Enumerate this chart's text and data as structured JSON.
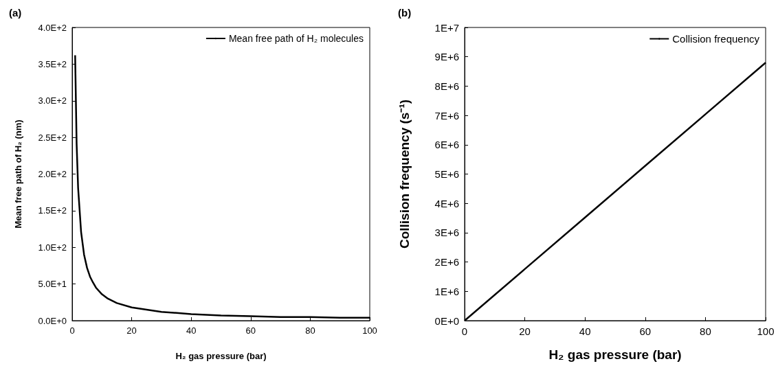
{
  "chart_data": [
    {
      "type": "line",
      "title": "(a)",
      "xlabel": "H₂ gas pressure (bar)",
      "ylabel": "Mean free path of H₂ (nm)",
      "legend": "top right",
      "grid": false,
      "marker": "none",
      "line_style": "solid",
      "xlim": [
        0,
        100
      ],
      "xticks": [
        0,
        20,
        40,
        60,
        80,
        100
      ],
      "ylim": [
        0,
        400
      ],
      "yticks": [
        {
          "value": 0,
          "label": "0.0E+0"
        },
        {
          "value": 50,
          "label": "5.0E+1"
        },
        {
          "value": 100,
          "label": "1.0E+2"
        },
        {
          "value": 150,
          "label": "1.5E+2"
        },
        {
          "value": 200,
          "label": "2.0E+2"
        },
        {
          "value": 250,
          "label": "2.5E+2"
        },
        {
          "value": 300,
          "label": "3.0E+2"
        },
        {
          "value": 350,
          "label": "3.5E+2"
        },
        {
          "value": 400,
          "label": "4.0E+2"
        }
      ],
      "series": [
        {
          "name": "Mean free path of H₂ molecules",
          "color": "#000000",
          "x": [
            1,
            1.5,
            2,
            3,
            4,
            5,
            6,
            7,
            8,
            10,
            12,
            15,
            20,
            25,
            30,
            40,
            50,
            60,
            70,
            80,
            90,
            100
          ],
          "values": [
            362,
            241,
            181,
            121,
            90,
            72,
            60,
            52,
            45,
            36,
            30,
            24,
            18,
            15,
            12,
            9,
            7,
            6,
            5,
            5,
            4,
            4
          ]
        }
      ]
    },
    {
      "type": "line",
      "title": "(b)",
      "xlabel": "H₂ gas pressure (bar)",
      "ylabel": "Collision frequency (s⁻¹)",
      "legend": "top right",
      "grid": false,
      "marker": "none",
      "line_style": "solid",
      "xlim": [
        0,
        100
      ],
      "xticks": [
        0,
        20,
        40,
        60,
        80,
        100
      ],
      "ylim": [
        0,
        10000000
      ],
      "yticks": [
        {
          "value": 0,
          "label": "0E+0"
        },
        {
          "value": 1000000,
          "label": "1E+6"
        },
        {
          "value": 2000000,
          "label": "2E+6"
        },
        {
          "value": 3000000,
          "label": "3E+6"
        },
        {
          "value": 4000000,
          "label": "4E+6"
        },
        {
          "value": 5000000,
          "label": "5E+6"
        },
        {
          "value": 6000000,
          "label": "6E+6"
        },
        {
          "value": 7000000,
          "label": "7E+6"
        },
        {
          "value": 8000000,
          "label": "8E+6"
        },
        {
          "value": 9000000,
          "label": "9E+6"
        },
        {
          "value": 10000000,
          "label": "1E+7"
        }
      ],
      "series": [
        {
          "name": "Collision frequency",
          "color": "#000000",
          "x": [
            0,
            20,
            40,
            60,
            80,
            100
          ],
          "values": [
            0,
            1760000,
            3520000,
            5280000,
            7040000,
            8800000
          ]
        }
      ]
    }
  ]
}
